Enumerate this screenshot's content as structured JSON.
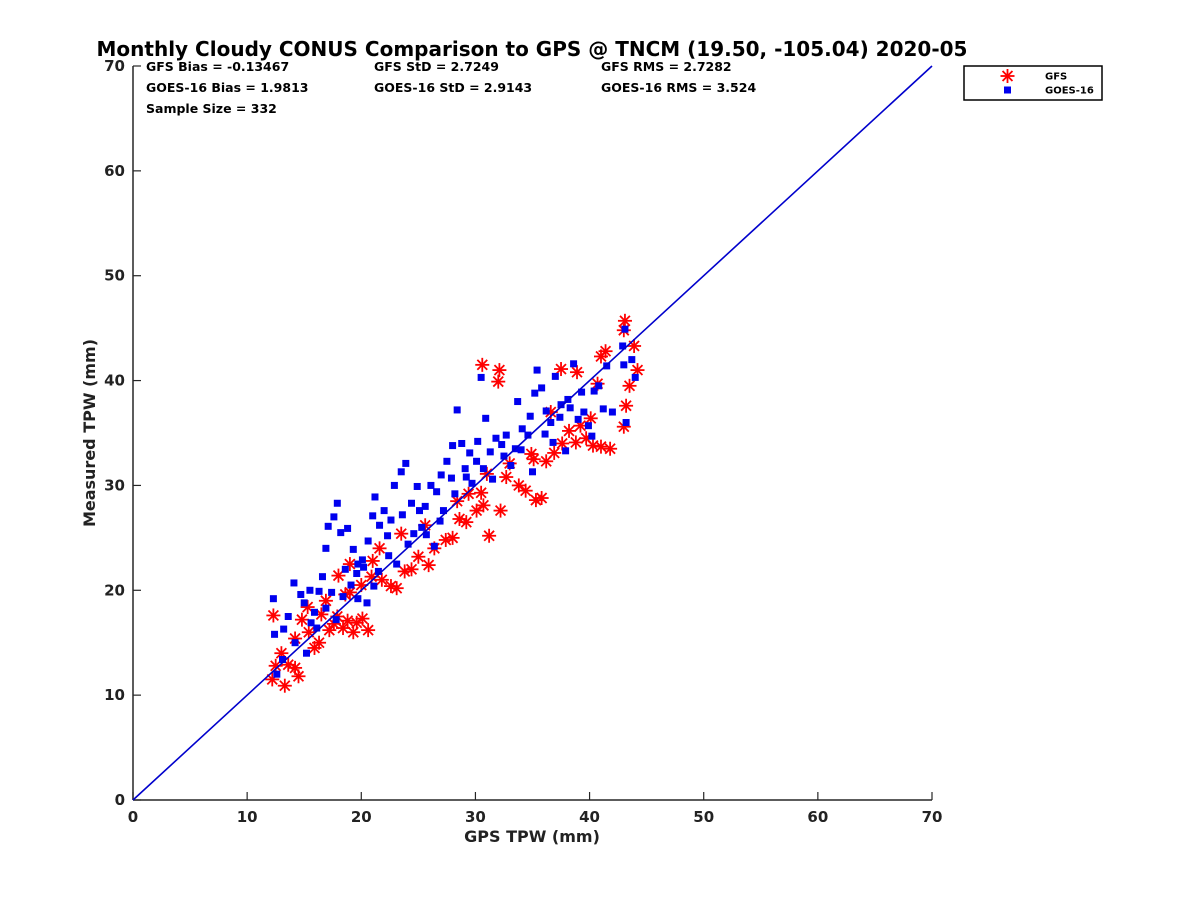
{
  "chart_data": {
    "type": "scatter",
    "title": "Monthly Cloudy CONUS Comparison to GPS @ TNCM (19.50, -105.04) 2020-05",
    "xlabel": "GPS TPW (mm)",
    "ylabel": "Measured TPW (mm)",
    "xlim": [
      0,
      70
    ],
    "ylim": [
      0,
      70
    ],
    "xticks": [
      "0",
      "10",
      "20",
      "30",
      "40",
      "50",
      "60",
      "70"
    ],
    "yticks": [
      "0",
      "10",
      "20",
      "30",
      "40",
      "50",
      "60",
      "70"
    ],
    "grid": false,
    "legend_position": "top-right",
    "stats": [
      "GFS Bias = -0.13467",
      "GFS StD = 2.7249",
      "GFS RMS = 2.7282",
      "GOES-16 Bias = 1.9813",
      "GOES-16 StD = 2.9143",
      "GOES-16 RMS = 3.524",
      "Sample Size = 332"
    ],
    "reference_line": {
      "x": [
        0,
        70
      ],
      "y": [
        0,
        70
      ],
      "color": "#0000cc"
    },
    "series": [
      {
        "name": "GFS",
        "marker": "asterisk",
        "color": "#ff0000",
        "points": [
          [
            12.2,
            11.5
          ],
          [
            12.5,
            12.8
          ],
          [
            12.3,
            17.6
          ],
          [
            13.3,
            10.9
          ],
          [
            13.6,
            12.9
          ],
          [
            14.5,
            11.8
          ],
          [
            14.2,
            15.4
          ],
          [
            14.8,
            17.2
          ],
          [
            15.4,
            16.0
          ],
          [
            15.9,
            14.5
          ],
          [
            16.3,
            15.0
          ],
          [
            16.5,
            17.7
          ],
          [
            17.2,
            16.2
          ],
          [
            17.6,
            16.8
          ],
          [
            17.9,
            17.5
          ],
          [
            18.4,
            16.4
          ],
          [
            18.8,
            17.1
          ],
          [
            19.3,
            16.0
          ],
          [
            19.6,
            16.9
          ],
          [
            20.1,
            17.3
          ],
          [
            20.6,
            16.2
          ],
          [
            19.0,
            19.8
          ],
          [
            20.0,
            20.5
          ],
          [
            20.9,
            21.3
          ],
          [
            21.8,
            21.0
          ],
          [
            22.6,
            20.4
          ],
          [
            23.1,
            20.2
          ],
          [
            23.8,
            21.8
          ],
          [
            24.4,
            22.0
          ],
          [
            25.0,
            23.2
          ],
          [
            25.9,
            22.4
          ],
          [
            26.4,
            24.0
          ],
          [
            27.4,
            24.8
          ],
          [
            28.0,
            25.0
          ],
          [
            28.6,
            26.8
          ],
          [
            29.2,
            26.5
          ],
          [
            30.1,
            27.6
          ],
          [
            31.2,
            25.2
          ],
          [
            32.2,
            27.6
          ],
          [
            30.5,
            29.3
          ],
          [
            31.0,
            31.1
          ],
          [
            32.7,
            30.8
          ],
          [
            33.8,
            30.0
          ],
          [
            34.4,
            29.5
          ],
          [
            35.3,
            28.6
          ],
          [
            35.8,
            28.8
          ],
          [
            35.1,
            32.5
          ],
          [
            36.2,
            32.3
          ],
          [
            36.9,
            33.1
          ],
          [
            37.6,
            34.0
          ],
          [
            38.8,
            34.1
          ],
          [
            39.7,
            34.5
          ],
          [
            40.3,
            33.8
          ],
          [
            41.0,
            33.7
          ],
          [
            41.8,
            33.5
          ],
          [
            38.2,
            35.2
          ],
          [
            39.2,
            35.7
          ],
          [
            40.1,
            36.4
          ],
          [
            30.6,
            41.5
          ],
          [
            32.1,
            41.0
          ],
          [
            32.0,
            39.9
          ],
          [
            37.5,
            41.1
          ],
          [
            38.9,
            40.8
          ],
          [
            40.7,
            39.7
          ],
          [
            41.0,
            42.3
          ],
          [
            41.4,
            42.8
          ],
          [
            43.1,
            45.7
          ],
          [
            43.0,
            44.8
          ],
          [
            43.9,
            43.3
          ],
          [
            44.2,
            41.0
          ],
          [
            43.5,
            39.5
          ],
          [
            43.2,
            37.6
          ],
          [
            43.0,
            35.6
          ],
          [
            19.0,
            22.5
          ],
          [
            21.6,
            24.0
          ],
          [
            23.5,
            25.4
          ],
          [
            25.6,
            26.2
          ],
          [
            28.4,
            28.5
          ],
          [
            29.4,
            29.2
          ],
          [
            30.7,
            28.1
          ],
          [
            33.0,
            32.1
          ],
          [
            34.9,
            33.0
          ],
          [
            36.6,
            37.0
          ],
          [
            16.9,
            19.0
          ],
          [
            18.0,
            21.4
          ],
          [
            14.2,
            12.6
          ],
          [
            13.0,
            14.0
          ],
          [
            15.3,
            18.4
          ],
          [
            18.6,
            19.6
          ],
          [
            21.0,
            22.8
          ]
        ]
      },
      {
        "name": "GOES-16",
        "marker": "square",
        "color": "#0000ee",
        "points": [
          [
            12.3,
            19.2
          ],
          [
            12.4,
            15.8
          ],
          [
            12.6,
            12.0
          ],
          [
            13.1,
            13.4
          ],
          [
            13.2,
            16.3
          ],
          [
            13.6,
            17.5
          ],
          [
            14.1,
            20.7
          ],
          [
            14.7,
            19.6
          ],
          [
            15.0,
            18.8
          ],
          [
            15.5,
            20.0
          ],
          [
            15.9,
            17.9
          ],
          [
            16.3,
            19.9
          ],
          [
            16.6,
            21.3
          ],
          [
            16.9,
            24.0
          ],
          [
            17.1,
            26.1
          ],
          [
            17.6,
            27.0
          ],
          [
            17.9,
            28.3
          ],
          [
            18.2,
            25.5
          ],
          [
            18.8,
            25.9
          ],
          [
            19.3,
            23.9
          ],
          [
            19.7,
            22.5
          ],
          [
            20.2,
            22.2
          ],
          [
            20.6,
            24.7
          ],
          [
            21.0,
            27.1
          ],
          [
            21.2,
            28.9
          ],
          [
            21.6,
            26.2
          ],
          [
            22.0,
            27.6
          ],
          [
            22.3,
            25.2
          ],
          [
            22.9,
            30.0
          ],
          [
            23.5,
            31.3
          ],
          [
            23.9,
            32.1
          ],
          [
            24.4,
            28.3
          ],
          [
            24.9,
            29.9
          ],
          [
            25.3,
            26.0
          ],
          [
            25.7,
            25.3
          ],
          [
            26.1,
            30.0
          ],
          [
            26.6,
            29.4
          ],
          [
            27.0,
            31.0
          ],
          [
            27.5,
            32.3
          ],
          [
            28.0,
            33.8
          ],
          [
            28.4,
            37.2
          ],
          [
            28.8,
            34.0
          ],
          [
            29.2,
            30.8
          ],
          [
            29.5,
            33.1
          ],
          [
            30.2,
            34.2
          ],
          [
            30.5,
            40.3
          ],
          [
            30.9,
            36.4
          ],
          [
            31.3,
            33.2
          ],
          [
            31.8,
            34.5
          ],
          [
            32.3,
            33.9
          ],
          [
            32.7,
            34.8
          ],
          [
            33.5,
            33.5
          ],
          [
            34.1,
            35.4
          ],
          [
            34.6,
            34.8
          ],
          [
            35.2,
            38.8
          ],
          [
            35.4,
            41.0
          ],
          [
            35.8,
            39.3
          ],
          [
            36.2,
            37.1
          ],
          [
            36.6,
            36.0
          ],
          [
            37.0,
            40.4
          ],
          [
            37.5,
            37.7
          ],
          [
            37.9,
            33.3
          ],
          [
            38.3,
            37.4
          ],
          [
            38.6,
            41.6
          ],
          [
            39.0,
            36.3
          ],
          [
            39.5,
            37.0
          ],
          [
            39.9,
            35.7
          ],
          [
            40.4,
            39.0
          ],
          [
            40.8,
            39.5
          ],
          [
            41.2,
            37.3
          ],
          [
            41.5,
            41.4
          ],
          [
            42.0,
            37.0
          ],
          [
            42.9,
            43.3
          ],
          [
            43.0,
            41.5
          ],
          [
            43.2,
            36.0
          ],
          [
            43.7,
            42.0
          ],
          [
            44.0,
            40.3
          ],
          [
            43.1,
            44.9
          ],
          [
            15.2,
            14.0
          ],
          [
            16.1,
            16.4
          ],
          [
            16.9,
            18.3
          ],
          [
            17.4,
            19.8
          ],
          [
            18.4,
            19.4
          ],
          [
            19.1,
            20.5
          ],
          [
            19.6,
            21.6
          ],
          [
            20.1,
            22.9
          ],
          [
            20.5,
            18.8
          ],
          [
            21.1,
            20.4
          ],
          [
            22.4,
            23.3
          ],
          [
            23.1,
            22.5
          ],
          [
            24.1,
            24.4
          ],
          [
            24.6,
            25.4
          ],
          [
            25.6,
            28.0
          ],
          [
            26.4,
            24.2
          ],
          [
            27.2,
            27.6
          ],
          [
            28.2,
            29.2
          ],
          [
            29.1,
            31.6
          ],
          [
            30.1,
            32.3
          ],
          [
            31.5,
            30.6
          ],
          [
            32.5,
            32.8
          ],
          [
            33.1,
            31.9
          ],
          [
            34.0,
            33.4
          ],
          [
            35.0,
            31.3
          ],
          [
            36.1,
            34.9
          ],
          [
            37.4,
            36.5
          ],
          [
            38.1,
            38.2
          ],
          [
            39.3,
            38.9
          ],
          [
            40.2,
            34.7
          ],
          [
            14.2,
            15.0
          ],
          [
            15.6,
            16.9
          ],
          [
            17.8,
            17.2
          ],
          [
            18.6,
            22.0
          ],
          [
            19.7,
            19.2
          ],
          [
            21.5,
            21.8
          ],
          [
            22.6,
            26.7
          ],
          [
            23.6,
            27.2
          ],
          [
            25.1,
            27.6
          ],
          [
            26.9,
            26.6
          ],
          [
            27.9,
            30.7
          ],
          [
            29.7,
            30.2
          ],
          [
            30.7,
            31.6
          ],
          [
            33.7,
            38.0
          ],
          [
            34.8,
            36.6
          ],
          [
            36.8,
            34.1
          ]
        ]
      }
    ]
  }
}
